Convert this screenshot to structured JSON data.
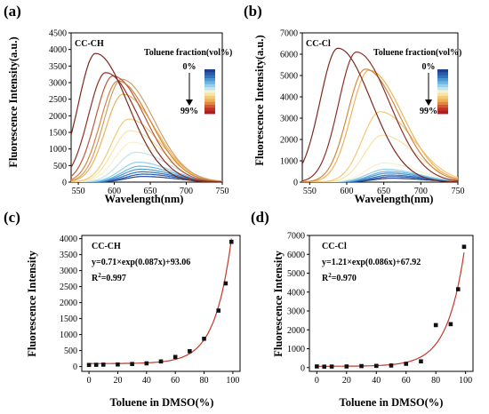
{
  "panels": [
    {
      "id": "a",
      "panel_label": "(a)",
      "sample_label": "CC-CH",
      "legend_title": "Toluene fraction(vol%)",
      "legend_top": "0%",
      "legend_bottom": "99%",
      "xlabel": "Wavelength(nm)",
      "ylabel": "Fluorescence Intensity(a.u.)"
    },
    {
      "id": "b",
      "panel_label": "(b)",
      "sample_label": "CC-Cl",
      "legend_title": "Toluene fraction(vol%)",
      "legend_top": "0%",
      "legend_bottom": "99%",
      "xlabel": "Wavelength(nm)",
      "ylabel": "Fluorescence Intensity(a.u.)"
    },
    {
      "id": "c",
      "panel_label": "(c)",
      "sample_label": "CC-CH",
      "equation": "y=0.71×exp(0.087x)+93.06",
      "r2_prefix": "R",
      "r2_sup": "2",
      "r2_value": "=0.997",
      "xlabel": "Toluene in DMSO(%)",
      "ylabel": "Fluorescence Intensity"
    },
    {
      "id": "d",
      "panel_label": "(d)",
      "sample_label": "CC-Cl",
      "equation": "y=1.21×exp(0.086x)+67.92",
      "r2_prefix": "R",
      "r2_sup": "2",
      "r2_value": "=0.970",
      "xlabel": "Toluene in DMSO(%)",
      "ylabel": "Fluorescence Intensity"
    }
  ],
  "chart_data": [
    {
      "type": "line",
      "panel": "a",
      "xlim": [
        540,
        750
      ],
      "ylim": [
        0,
        4500
      ],
      "xticks": [
        550,
        600,
        650,
        700,
        750
      ],
      "yticks": [
        0,
        500,
        1000,
        1500,
        2000,
        2500,
        3000,
        3500,
        4000,
        4500
      ],
      "series": [
        {
          "peak_x": 640,
          "peak_y": 170,
          "color": "#1f3f8f"
        },
        {
          "peak_x": 640,
          "peak_y": 240,
          "color": "#2a5aa8"
        },
        {
          "peak_x": 638,
          "peak_y": 310,
          "color": "#3375c0"
        },
        {
          "peak_x": 636,
          "peak_y": 390,
          "color": "#4a97d2"
        },
        {
          "peak_x": 635,
          "peak_y": 480,
          "color": "#6bb6df"
        },
        {
          "peak_x": 633,
          "peak_y": 600,
          "color": "#93d0e9"
        },
        {
          "peak_x": 630,
          "peak_y": 900,
          "color": "#bfe4ef"
        },
        {
          "peak_x": 625,
          "peak_y": 1200,
          "color": "#f5f0d0"
        },
        {
          "peak_x": 622,
          "peak_y": 1550,
          "color": "#f6e3a6"
        },
        {
          "peak_x": 620,
          "peak_y": 1900,
          "color": "#f4c97a"
        },
        {
          "peak_x": 612,
          "peak_y": 2650,
          "color": "#efb25a"
        },
        {
          "peak_x": 610,
          "peak_y": 3100,
          "color": "#cfa068"
        },
        {
          "peak_x": 605,
          "peak_y": 3050,
          "color": "#d2883e"
        },
        {
          "peak_x": 598,
          "peak_y": 3200,
          "color": "#b85a3e"
        },
        {
          "peak_x": 588,
          "peak_y": 3300,
          "color": "#8c3028"
        },
        {
          "peak_x": 574,
          "peak_y": 3880,
          "color": "#7a2a1e"
        }
      ]
    },
    {
      "type": "line",
      "panel": "b",
      "xlim": [
        540,
        750
      ],
      "ylim": [
        0,
        7000
      ],
      "xticks": [
        550,
        600,
        650,
        700,
        750
      ],
      "yticks": [
        0,
        1000,
        2000,
        3000,
        4000,
        5000,
        6000,
        7000
      ],
      "series": [
        {
          "peak_x": 660,
          "peak_y": 180,
          "color": "#1f3f8f"
        },
        {
          "peak_x": 660,
          "peak_y": 260,
          "color": "#2a5aa8"
        },
        {
          "peak_x": 658,
          "peak_y": 330,
          "color": "#3375c0"
        },
        {
          "peak_x": 656,
          "peak_y": 420,
          "color": "#4a97d2"
        },
        {
          "peak_x": 655,
          "peak_y": 500,
          "color": "#6bb6df"
        },
        {
          "peak_x": 652,
          "peak_y": 600,
          "color": "#93d0e9"
        },
        {
          "peak_x": 650,
          "peak_y": 900,
          "color": "#f5f0d0"
        },
        {
          "peak_x": 648,
          "peak_y": 2200,
          "color": "#f6e3a6"
        },
        {
          "peak_x": 645,
          "peak_y": 3300,
          "color": "#f4c97a"
        },
        {
          "peak_x": 630,
          "peak_y": 5250,
          "color": "#efb25a"
        },
        {
          "peak_x": 625,
          "peak_y": 5300,
          "color": "#d2883e"
        },
        {
          "peak_x": 613,
          "peak_y": 6100,
          "color": "#8c3028"
        },
        {
          "peak_x": 588,
          "peak_y": 6280,
          "color": "#7a2a1e"
        }
      ]
    },
    {
      "type": "scatter",
      "panel": "c",
      "xlim": [
        -5,
        105
      ],
      "ylim": [
        -150,
        4100
      ],
      "xticks": [
        0,
        20,
        40,
        60,
        80,
        100
      ],
      "yticks": [
        0,
        500,
        1000,
        1500,
        2000,
        2500,
        3000,
        3500,
        4000
      ],
      "fit": {
        "a": 0.71,
        "b": 0.087,
        "c": 93.06
      },
      "points": [
        {
          "x": 0,
          "y": 50
        },
        {
          "x": 5,
          "y": 55
        },
        {
          "x": 10,
          "y": 60
        },
        {
          "x": 20,
          "y": 65
        },
        {
          "x": 30,
          "y": 80
        },
        {
          "x": 40,
          "y": 100
        },
        {
          "x": 50,
          "y": 160
        },
        {
          "x": 60,
          "y": 300
        },
        {
          "x": 70,
          "y": 480
        },
        {
          "x": 80,
          "y": 870
        },
        {
          "x": 90,
          "y": 1750
        },
        {
          "x": 95,
          "y": 2600
        },
        {
          "x": 99,
          "y": 3900
        }
      ]
    },
    {
      "type": "scatter",
      "panel": "d",
      "xlim": [
        -5,
        105
      ],
      "ylim": [
        -200,
        7000
      ],
      "xticks": [
        0,
        20,
        40,
        60,
        80,
        100
      ],
      "yticks": [
        0,
        1000,
        2000,
        3000,
        4000,
        5000,
        6000,
        7000
      ],
      "fit": {
        "a": 1.21,
        "b": 0.086,
        "c": 67.92
      },
      "points": [
        {
          "x": 0,
          "y": 60
        },
        {
          "x": 5,
          "y": 50
        },
        {
          "x": 10,
          "y": 55
        },
        {
          "x": 20,
          "y": 60
        },
        {
          "x": 30,
          "y": 80
        },
        {
          "x": 40,
          "y": 90
        },
        {
          "x": 50,
          "y": 110
        },
        {
          "x": 60,
          "y": 200
        },
        {
          "x": 70,
          "y": 330
        },
        {
          "x": 80,
          "y": 2250
        },
        {
          "x": 90,
          "y": 2300
        },
        {
          "x": 95,
          "y": 4150
        },
        {
          "x": 99,
          "y": 6400
        }
      ]
    }
  ],
  "colorbar": [
    "#1f3f8f",
    "#2a5aa8",
    "#3375c0",
    "#4a97d2",
    "#6bb6df",
    "#93d0e9",
    "#bfe4ef",
    "#f5f0d0",
    "#f6e3a6",
    "#f4c97a",
    "#efb25a",
    "#e08a3e",
    "#d05a34",
    "#c43028",
    "#b01f1f"
  ]
}
